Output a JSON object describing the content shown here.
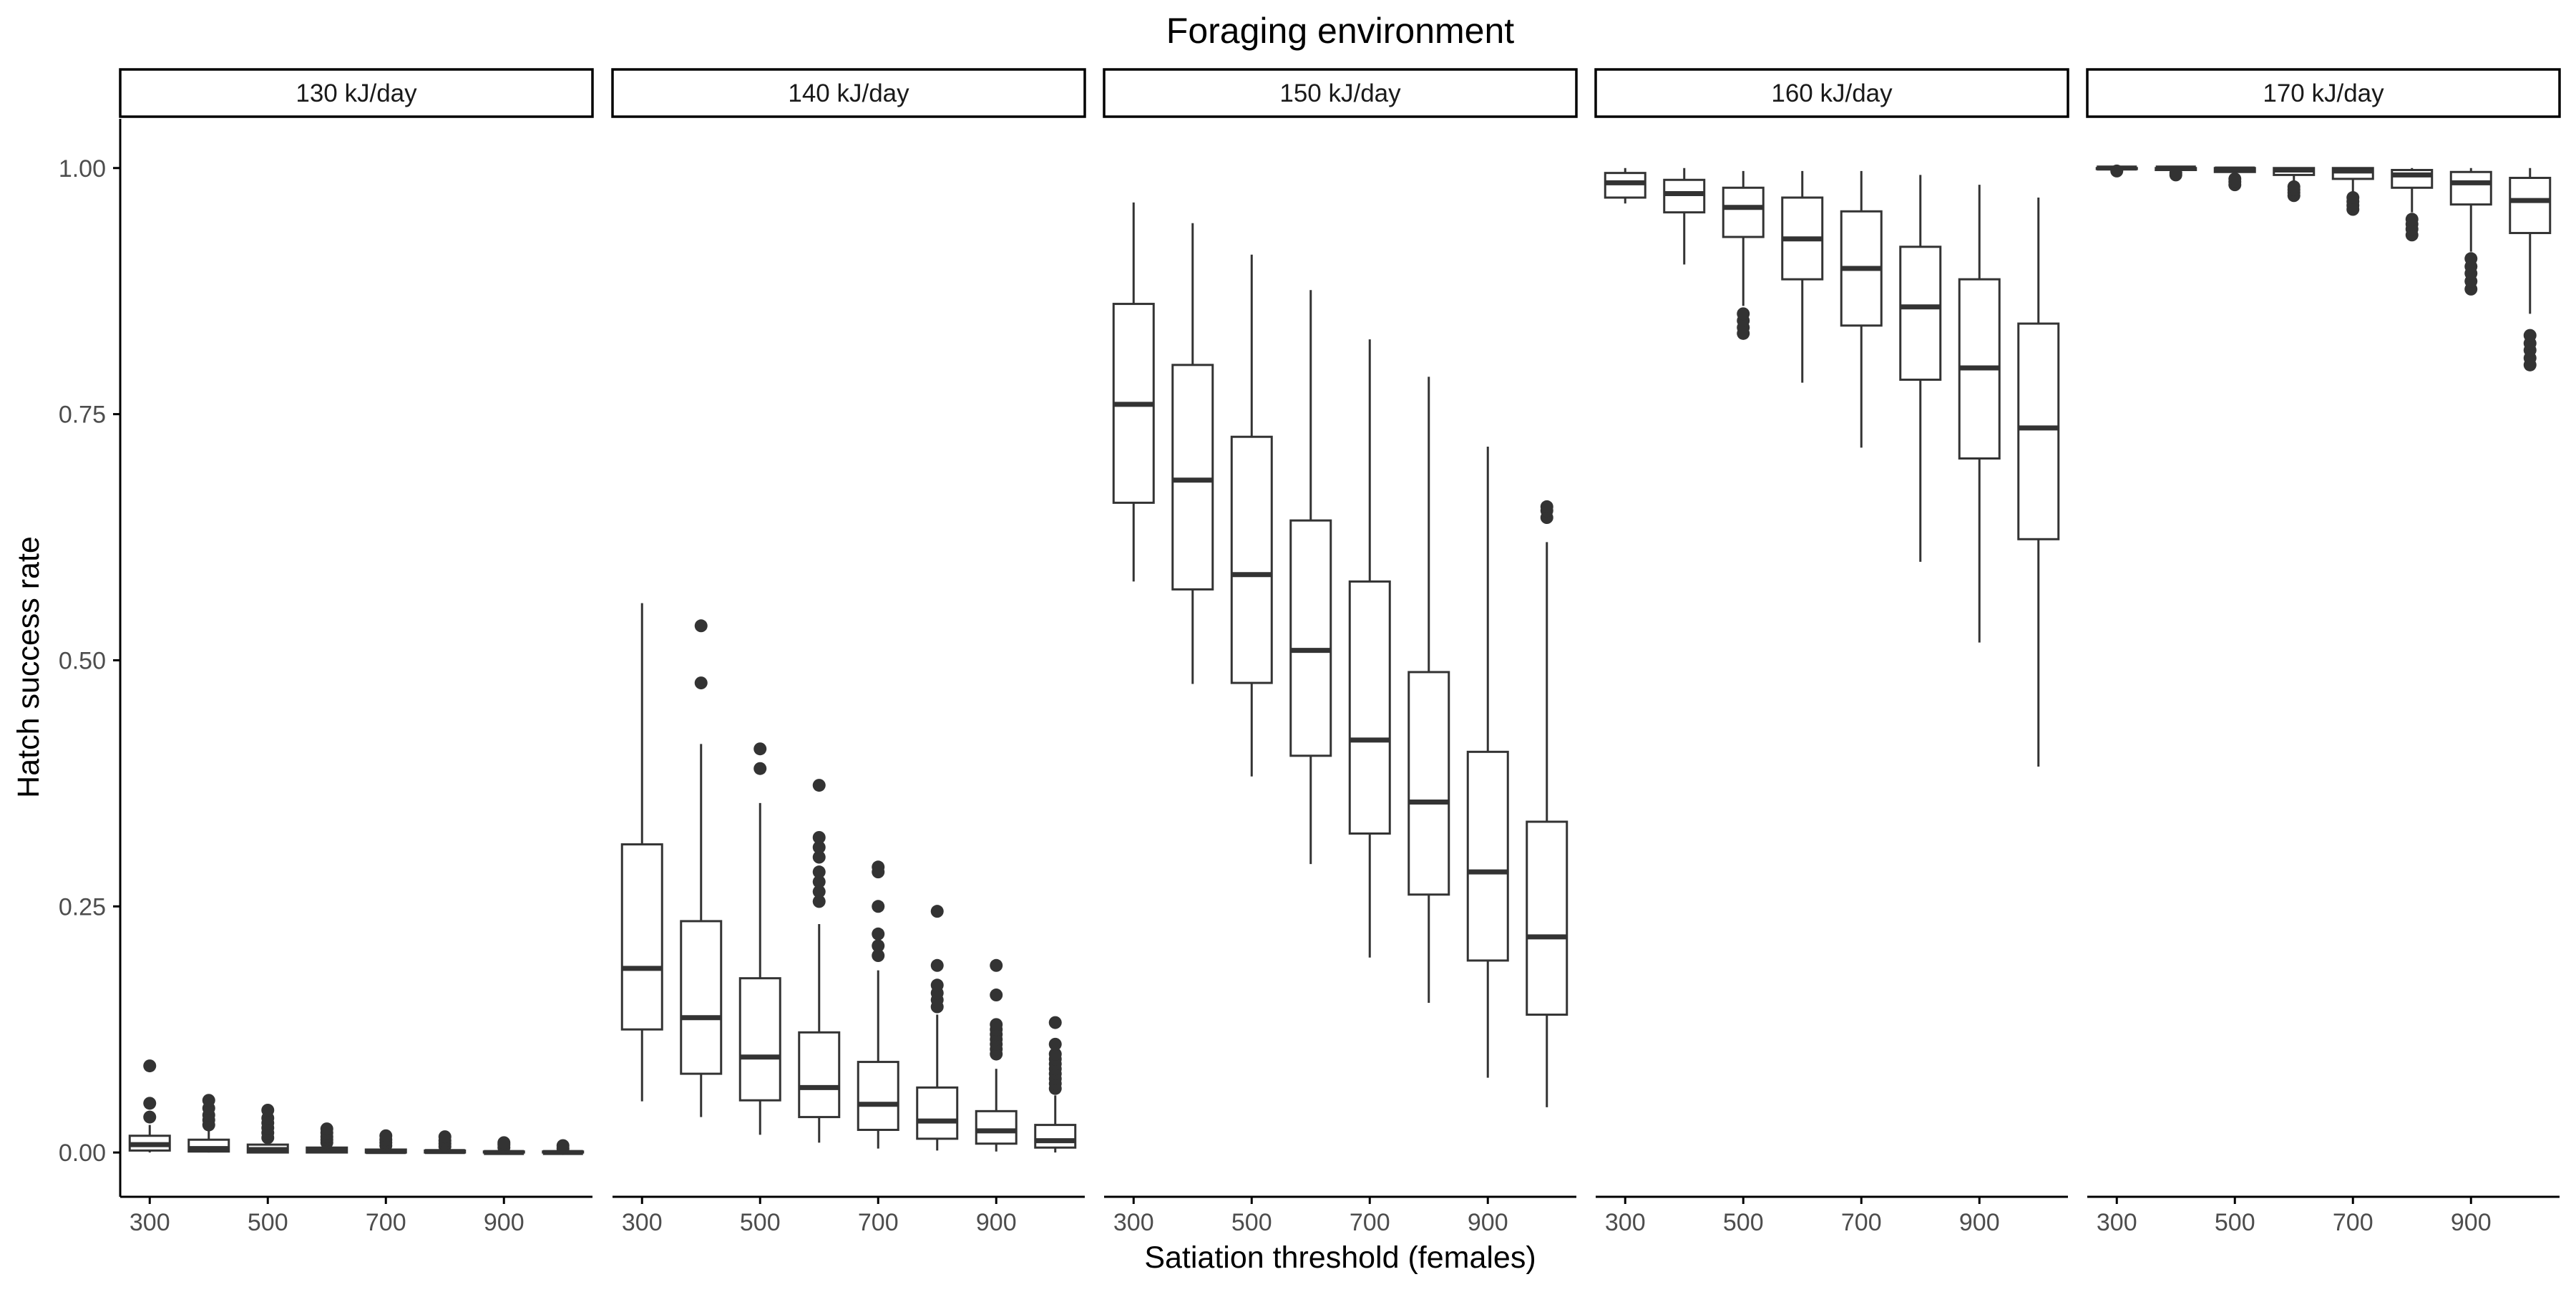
{
  "chart_data": {
    "type": "box",
    "title": "Foraging environment",
    "xlabel": "Satiation threshold (females)",
    "ylabel": "Hatch success rate",
    "ylim": [
      -0.045,
      1.05
    ],
    "xlim": [
      250,
      1050
    ],
    "yticks": [
      0.0,
      0.25,
      0.5,
      0.75,
      1.0
    ],
    "ytick_labels": [
      "0.00",
      "0.25",
      "0.50",
      "0.75",
      "1.00"
    ],
    "xticks": [
      300,
      500,
      700,
      900
    ],
    "xtick_labels": [
      "300",
      "500",
      "700",
      "900"
    ],
    "categories": [
      300,
      400,
      500,
      600,
      700,
      800,
      900,
      1000
    ],
    "grid": false,
    "legend": "none",
    "colors": {
      "box_line": "#333333",
      "axis_line": "#000000",
      "tick_text": "#4d4d4d",
      "strip_fill": "#ffffff",
      "strip_border": "#000000"
    },
    "facets": [
      {
        "label": "130 kJ/day",
        "boxes": [
          {
            "x": 300,
            "q1": 0.002,
            "median": 0.008,
            "q3": 0.017,
            "whisker_low": 0.0,
            "whisker_high": 0.028,
            "outliers": [
              0.036,
              0.05,
              0.088
            ]
          },
          {
            "x": 400,
            "q1": 0.001,
            "median": 0.004,
            "q3": 0.013,
            "whisker_low": 0.0,
            "whisker_high": 0.024,
            "outliers": [
              0.028,
              0.033,
              0.038,
              0.045,
              0.053
            ]
          },
          {
            "x": 500,
            "q1": 0.0,
            "median": 0.003,
            "q3": 0.008,
            "whisker_low": 0.0,
            "whisker_high": 0.012,
            "outliers": [
              0.015,
              0.02,
              0.025,
              0.03,
              0.035,
              0.043
            ]
          },
          {
            "x": 600,
            "q1": 0.0,
            "median": 0.002,
            "q3": 0.005,
            "whisker_low": 0.0,
            "whisker_high": 0.008,
            "outliers": [
              0.01,
              0.013,
              0.016,
              0.02,
              0.024
            ]
          },
          {
            "x": 700,
            "q1": 0.0,
            "median": 0.001,
            "q3": 0.003,
            "whisker_low": 0.0,
            "whisker_high": 0.005,
            "outliers": [
              0.007,
              0.01,
              0.013,
              0.017
            ]
          },
          {
            "x": 800,
            "q1": 0.0,
            "median": 0.001,
            "q3": 0.002,
            "whisker_low": 0.0,
            "whisker_high": 0.004,
            "outliers": [
              0.006,
              0.009,
              0.012,
              0.016
            ]
          },
          {
            "x": 900,
            "q1": 0.0,
            "median": 0.0,
            "q3": 0.001,
            "whisker_low": 0.0,
            "whisker_high": 0.003,
            "outliers": [
              0.005,
              0.008,
              0.01
            ]
          },
          {
            "x": 1000,
            "q1": 0.0,
            "median": 0.0,
            "q3": 0.001,
            "whisker_low": 0.0,
            "whisker_high": 0.002,
            "outliers": [
              0.004,
              0.007
            ]
          }
        ]
      },
      {
        "label": "140 kJ/day",
        "boxes": [
          {
            "x": 300,
            "q1": 0.125,
            "median": 0.187,
            "q3": 0.313,
            "whisker_low": 0.052,
            "whisker_high": 0.558,
            "outliers": []
          },
          {
            "x": 400,
            "q1": 0.08,
            "median": 0.137,
            "q3": 0.235,
            "whisker_low": 0.036,
            "whisker_high": 0.415,
            "outliers": [
              0.477,
              0.535
            ]
          },
          {
            "x": 500,
            "q1": 0.053,
            "median": 0.097,
            "q3": 0.177,
            "whisker_low": 0.018,
            "whisker_high": 0.355,
            "outliers": [
              0.39,
              0.41
            ]
          },
          {
            "x": 600,
            "q1": 0.036,
            "median": 0.066,
            "q3": 0.122,
            "whisker_low": 0.01,
            "whisker_high": 0.232,
            "outliers": [
              0.255,
              0.265,
              0.275,
              0.285,
              0.3,
              0.31,
              0.32,
              0.373
            ]
          },
          {
            "x": 700,
            "q1": 0.023,
            "median": 0.049,
            "q3": 0.092,
            "whisker_low": 0.004,
            "whisker_high": 0.185,
            "outliers": [
              0.2,
              0.21,
              0.222,
              0.25,
              0.285,
              0.29
            ]
          },
          {
            "x": 800,
            "q1": 0.014,
            "median": 0.032,
            "q3": 0.066,
            "whisker_low": 0.002,
            "whisker_high": 0.14,
            "outliers": [
              0.148,
              0.155,
              0.162,
              0.17,
              0.19,
              0.245
            ]
          },
          {
            "x": 900,
            "q1": 0.009,
            "median": 0.022,
            "q3": 0.042,
            "whisker_low": 0.001,
            "whisker_high": 0.085,
            "outliers": [
              0.1,
              0.105,
              0.11,
              0.115,
              0.12,
              0.125,
              0.13,
              0.16,
              0.19
            ]
          },
          {
            "x": 1000,
            "q1": 0.005,
            "median": 0.012,
            "q3": 0.028,
            "whisker_low": 0.0,
            "whisker_high": 0.058,
            "outliers": [
              0.065,
              0.07,
              0.075,
              0.08,
              0.085,
              0.09,
              0.095,
              0.1,
              0.11,
              0.132
            ]
          }
        ]
      },
      {
        "label": "150 kJ/day",
        "boxes": [
          {
            "x": 300,
            "q1": 0.66,
            "median": 0.76,
            "q3": 0.862,
            "whisker_low": 0.58,
            "whisker_high": 0.965,
            "outliers": []
          },
          {
            "x": 400,
            "q1": 0.572,
            "median": 0.683,
            "q3": 0.8,
            "whisker_low": 0.476,
            "whisker_high": 0.944,
            "outliers": []
          },
          {
            "x": 500,
            "q1": 0.477,
            "median": 0.587,
            "q3": 0.727,
            "whisker_low": 0.382,
            "whisker_high": 0.912,
            "outliers": []
          },
          {
            "x": 600,
            "q1": 0.403,
            "median": 0.51,
            "q3": 0.642,
            "whisker_low": 0.293,
            "whisker_high": 0.876,
            "outliers": []
          },
          {
            "x": 700,
            "q1": 0.324,
            "median": 0.419,
            "q3": 0.58,
            "whisker_low": 0.198,
            "whisker_high": 0.826,
            "outliers": []
          },
          {
            "x": 800,
            "q1": 0.262,
            "median": 0.356,
            "q3": 0.488,
            "whisker_low": 0.152,
            "whisker_high": 0.788,
            "outliers": []
          },
          {
            "x": 900,
            "q1": 0.195,
            "median": 0.285,
            "q3": 0.407,
            "whisker_low": 0.076,
            "whisker_high": 0.717,
            "outliers": []
          },
          {
            "x": 1000,
            "q1": 0.14,
            "median": 0.219,
            "q3": 0.336,
            "whisker_low": 0.046,
            "whisker_high": 0.62,
            "outliers": [
              0.645,
              0.652,
              0.656
            ]
          }
        ]
      },
      {
        "label": "160 kJ/day",
        "boxes": [
          {
            "x": 300,
            "q1": 0.97,
            "median": 0.985,
            "q3": 0.995,
            "whisker_low": 0.964,
            "whisker_high": 1.0,
            "outliers": []
          },
          {
            "x": 400,
            "q1": 0.955,
            "median": 0.974,
            "q3": 0.988,
            "whisker_low": 0.902,
            "whisker_high": 1.0,
            "outliers": []
          },
          {
            "x": 500,
            "q1": 0.93,
            "median": 0.96,
            "q3": 0.98,
            "whisker_low": 0.86,
            "whisker_high": 0.997,
            "outliers": [
              0.832,
              0.838,
              0.845,
              0.852
            ]
          },
          {
            "x": 600,
            "q1": 0.887,
            "median": 0.928,
            "q3": 0.97,
            "whisker_low": 0.782,
            "whisker_high": 0.997,
            "outliers": []
          },
          {
            "x": 700,
            "q1": 0.84,
            "median": 0.898,
            "q3": 0.956,
            "whisker_low": 0.716,
            "whisker_high": 0.997,
            "outliers": []
          },
          {
            "x": 800,
            "q1": 0.785,
            "median": 0.859,
            "q3": 0.92,
            "whisker_low": 0.6,
            "whisker_high": 0.993,
            "outliers": []
          },
          {
            "x": 900,
            "q1": 0.705,
            "median": 0.797,
            "q3": 0.887,
            "whisker_low": 0.518,
            "whisker_high": 0.983,
            "outliers": []
          },
          {
            "x": 1000,
            "q1": 0.623,
            "median": 0.736,
            "q3": 0.842,
            "whisker_low": 0.392,
            "whisker_high": 0.97,
            "outliers": []
          }
        ]
      },
      {
        "label": "170 kJ/day",
        "boxes": [
          {
            "x": 300,
            "q1": 0.999,
            "median": 1.0,
            "q3": 1.0,
            "whisker_low": 0.998,
            "whisker_high": 1.0,
            "outliers": [
              0.997
            ]
          },
          {
            "x": 400,
            "q1": 0.998,
            "median": 1.0,
            "q3": 1.0,
            "whisker_low": 0.996,
            "whisker_high": 1.0,
            "outliers": [
              0.993,
              0.995
            ]
          },
          {
            "x": 500,
            "q1": 0.996,
            "median": 0.999,
            "q3": 1.0,
            "whisker_low": 0.99,
            "whisker_high": 1.0,
            "outliers": [
              0.983,
              0.986,
              0.989
            ]
          },
          {
            "x": 600,
            "q1": 0.993,
            "median": 0.998,
            "q3": 1.0,
            "whisker_low": 0.984,
            "whisker_high": 1.0,
            "outliers": [
              0.972,
              0.975,
              0.978,
              0.981
            ]
          },
          {
            "x": 700,
            "q1": 0.989,
            "median": 0.997,
            "q3": 1.0,
            "whisker_low": 0.975,
            "whisker_high": 1.0,
            "outliers": [
              0.958,
              0.962,
              0.966,
              0.97
            ]
          },
          {
            "x": 800,
            "q1": 0.98,
            "median": 0.993,
            "q3": 0.998,
            "whisker_low": 0.955,
            "whisker_high": 1.0,
            "outliers": [
              0.932,
              0.938,
              0.943,
              0.948
            ]
          },
          {
            "x": 900,
            "q1": 0.963,
            "median": 0.985,
            "q3": 0.996,
            "whisker_low": 0.915,
            "whisker_high": 1.0,
            "outliers": [
              0.877,
              0.885,
              0.893,
              0.9,
              0.908
            ]
          },
          {
            "x": 1000,
            "q1": 0.934,
            "median": 0.967,
            "q3": 0.99,
            "whisker_low": 0.852,
            "whisker_high": 1.0,
            "outliers": [
              0.8,
              0.807,
              0.815,
              0.822,
              0.83
            ]
          }
        ]
      }
    ]
  }
}
